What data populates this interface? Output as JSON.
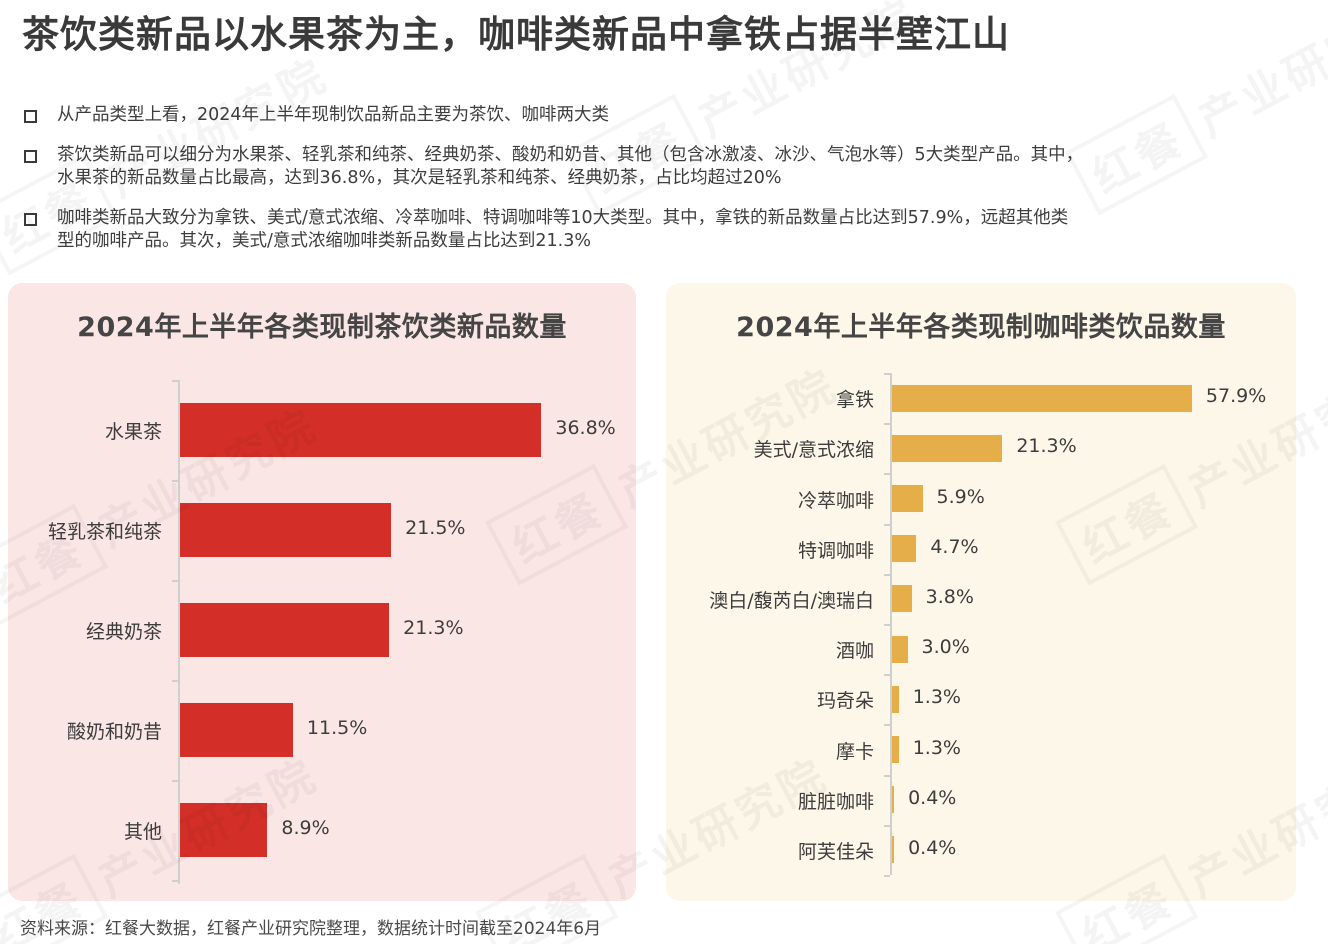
{
  "header": {
    "title": "茶饮类新品以水果茶为主，咖啡类新品中拿铁占据半壁江山"
  },
  "bullets": [
    {
      "line1": "从产品类型上看，2024年上半年现制饮品新品主要为茶饮、咖啡两大类",
      "line2": ""
    },
    {
      "line1": "茶饮类新品可以细分为水果茶、轻乳茶和纯茶、经典奶茶、酸奶和奶昔、其他（包含冰激凌、冰沙、气泡水等）5大类型产品。其中，",
      "line2": "水果茶的新品数量占比最高，达到36.8%，其次是轻乳茶和纯茶、经典奶茶，占比均超过20%"
    },
    {
      "line1": "咖啡类新品大致分为拿铁、美式/意式浓缩、冷萃咖啡、特调咖啡等10大类型。其中，拿铁的新品数量占比达到57.9%，远超其他类",
      "line2": "型的咖啡产品。其次，美式/意式浓缩咖啡类新品数量占比达到21.3%"
    }
  ],
  "colors": {
    "tea_bar": "#d42e28",
    "coffee_bar": "#e6ae48",
    "tea_panel_bg": "#fbe6e6",
    "coffee_panel_bg": "#fdf7ea",
    "text": "#3d3d3d"
  },
  "chart_data": [
    {
      "type": "bar",
      "orientation": "horizontal",
      "title": "2024年上半年各类现制茶饮类新品数量",
      "categories": [
        "水果茶",
        "轻乳茶和纯茶",
        "经典奶茶",
        "酸奶和奶昔",
        "其他"
      ],
      "values": [
        36.8,
        21.5,
        21.3,
        11.5,
        8.9
      ],
      "labels": [
        "36.8%",
        "21.5%",
        "21.3%",
        "11.5%",
        "8.9%"
      ],
      "unit": "%",
      "xlabel": "",
      "ylabel": "",
      "grid": false,
      "legend": null
    },
    {
      "type": "bar",
      "orientation": "horizontal",
      "title": "2024年上半年各类现制咖啡类饮品数量",
      "categories": [
        "拿铁",
        "美式/意式浓缩",
        "冷萃咖啡",
        "特调咖啡",
        "澳白/馥芮白/澳瑞白",
        "酒咖",
        "玛奇朵",
        "摩卡",
        "脏脏咖啡",
        "阿芙佳朵"
      ],
      "values": [
        57.9,
        21.3,
        5.9,
        4.7,
        3.8,
        3.0,
        1.3,
        1.3,
        0.4,
        0.4
      ],
      "labels": [
        "57.9%",
        "21.3%",
        "5.9%",
        "4.7%",
        "3.8%",
        "3.0%",
        "1.3%",
        "1.3%",
        "0.4%",
        "0.4%"
      ],
      "unit": "%",
      "xlabel": "",
      "ylabel": "",
      "grid": false,
      "legend": null
    }
  ],
  "watermark": {
    "brand": "红餐",
    "text": "产业研究院"
  },
  "footer": {
    "source": "资料来源：红餐大数据，红餐产业研究院整理，数据统计时间截至2024年6月"
  }
}
